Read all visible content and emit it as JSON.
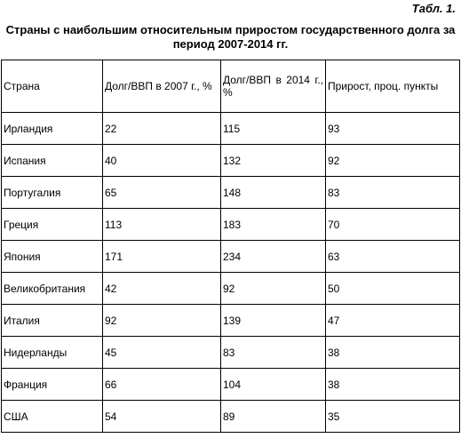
{
  "table_number": "Табл. 1.",
  "caption": {
    "line1": "Страны с наибольшим относительным приростом государственного долга за",
    "line2": "период 2007-2014 гг."
  },
  "table": {
    "headers": [
      "Страна",
      "Долг/ВВП в 2007 г., %",
      "Долг/ВВП в 2014 г., %",
      "Прирост, проц. пункты"
    ],
    "rows": [
      [
        "Ирландия",
        "22",
        "115",
        "93"
      ],
      [
        "Испания",
        "40",
        "132",
        "92"
      ],
      [
        "Португалия",
        "65",
        "148",
        "83"
      ],
      [
        "Греция",
        "113",
        "183",
        "70"
      ],
      [
        "Япония",
        "171",
        "234",
        "63"
      ],
      [
        "Великобритания",
        "42",
        "92",
        "50"
      ],
      [
        "Италия",
        "92",
        "139",
        "47"
      ],
      [
        "Нидерланды",
        "45",
        "83",
        "38"
      ],
      [
        "Франция",
        "66",
        "104",
        "38"
      ],
      [
        "США",
        "54",
        "89",
        "35"
      ]
    ]
  }
}
